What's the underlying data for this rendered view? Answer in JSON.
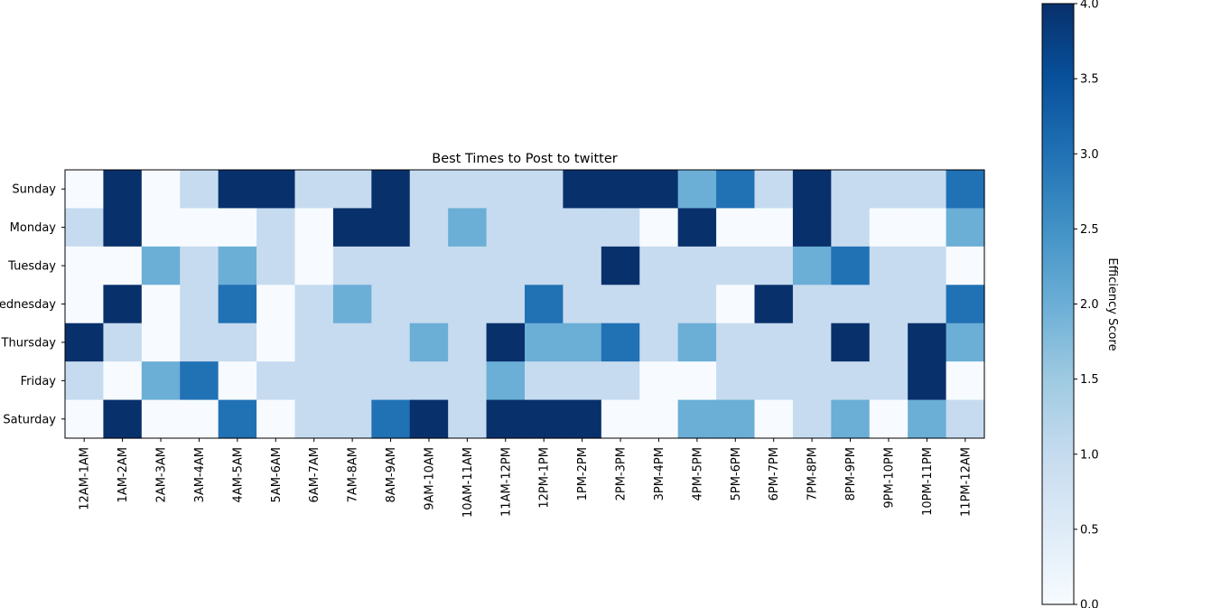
{
  "chart_data": {
    "type": "heatmap",
    "title": "Best Times to Post to twitter",
    "xlabel": "",
    "ylabel": "",
    "x_categories": [
      "12AM-1AM",
      "1AM-2AM",
      "2AM-3AM",
      "3AM-4AM",
      "4AM-5AM",
      "5AM-6AM",
      "6AM-7AM",
      "7AM-8AM",
      "8AM-9AM",
      "9AM-10AM",
      "10AM-11AM",
      "11AM-12PM",
      "12PM-1PM",
      "1PM-2PM",
      "2PM-3PM",
      "3PM-4PM",
      "4PM-5PM",
      "5PM-6PM",
      "6PM-7PM",
      "7PM-8PM",
      "8PM-9PM",
      "9PM-10PM",
      "10PM-11PM",
      "11PM-12AM"
    ],
    "y_categories": [
      "Sunday",
      "Monday",
      "Tuesday",
      "Wednesday",
      "Thursday",
      "Friday",
      "Saturday"
    ],
    "y_tick_labels": [
      "Sunday",
      "Monday",
      "Tuesday",
      "ednesday",
      "Thursday",
      "Friday",
      "Saturday"
    ],
    "values": [
      [
        0,
        4,
        0,
        1,
        4,
        4,
        1,
        1,
        4,
        1,
        1,
        1,
        1,
        4,
        4,
        4,
        2,
        3,
        1,
        4,
        1,
        1,
        1,
        3
      ],
      [
        1,
        4,
        0,
        0,
        0,
        1,
        0,
        4,
        4,
        1,
        2,
        1,
        1,
        1,
        1,
        0,
        4,
        0,
        0,
        4,
        1,
        0,
        0,
        2
      ],
      [
        0,
        0,
        2,
        1,
        2,
        1,
        0,
        1,
        1,
        1,
        1,
        1,
        1,
        1,
        4,
        1,
        1,
        1,
        1,
        2,
        3,
        1,
        1,
        0
      ],
      [
        0,
        4,
        0,
        1,
        3,
        0,
        1,
        2,
        1,
        1,
        1,
        1,
        3,
        1,
        1,
        1,
        1,
        0,
        4,
        1,
        1,
        1,
        1,
        3
      ],
      [
        4,
        1,
        0,
        1,
        1,
        0,
        1,
        1,
        1,
        2,
        1,
        4,
        2,
        2,
        3,
        1,
        2,
        1,
        1,
        1,
        4,
        1,
        4,
        2
      ],
      [
        1,
        0,
        2,
        3,
        0,
        1,
        1,
        1,
        1,
        1,
        1,
        2,
        1,
        1,
        1,
        0,
        0,
        1,
        1,
        1,
        1,
        1,
        4,
        0
      ],
      [
        0,
        4,
        0,
        0,
        3,
        0,
        1,
        1,
        3,
        4,
        1,
        4,
        4,
        4,
        0,
        0,
        2,
        2,
        0,
        1,
        2,
        0,
        2,
        1
      ]
    ],
    "colormap": "Blues",
    "colorbar": {
      "label": "Efficiency Score",
      "range": [
        0,
        4
      ],
      "ticks": [
        "0.0",
        "0.5",
        "1.0",
        "1.5",
        "2.0",
        "2.5",
        "3.0",
        "3.5",
        "4.0"
      ]
    },
    "colors": {
      "0": "#f7fbff",
      "1": "#c6dbef",
      "2": "#6baed6",
      "3": "#2171b5",
      "4": "#08306b"
    }
  }
}
